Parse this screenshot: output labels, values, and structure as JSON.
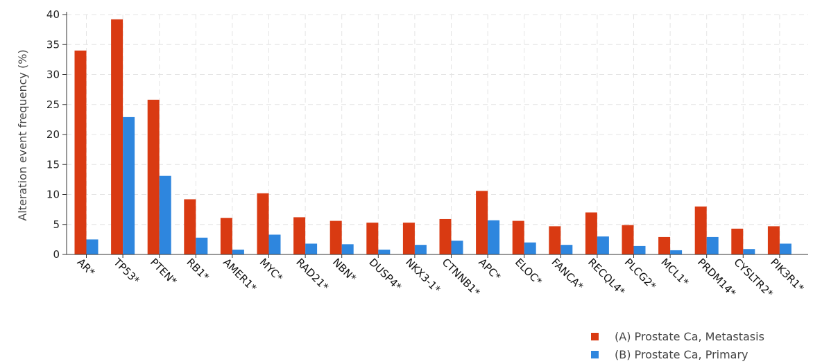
{
  "chart_data": {
    "type": "bar",
    "ylabel": "Alteration event frequency (%)",
    "ylim": [
      0,
      40
    ],
    "yticks": [
      0,
      5,
      10,
      15,
      20,
      25,
      30,
      35,
      40
    ],
    "grid": true,
    "legend_position": "bottom-right",
    "categories": [
      "AR*",
      "TP53*",
      "PTEN*",
      "RB1*",
      "AMER1*",
      "MYC*",
      "RAD21*",
      "NBN*",
      "DUSP4*",
      "NKX3-1*",
      "CTNNB1*",
      "APC*",
      "ELOC*",
      "FANCA*",
      "RECQL4*",
      "PLCG2*",
      "MCL1*",
      "PRDM14*",
      "CYSLTR2*",
      "PIK3R1*"
    ],
    "series": [
      {
        "name": "(A) Prostate Ca, Metastasis",
        "color": "#d93a12",
        "values": [
          34.0,
          39.2,
          25.8,
          9.2,
          6.1,
          10.2,
          6.2,
          5.6,
          5.3,
          5.3,
          5.9,
          10.6,
          5.6,
          4.7,
          7.0,
          4.9,
          2.9,
          8.0,
          4.3,
          4.7
        ]
      },
      {
        "name": "(B) Prostate Ca, Primary",
        "color": "#2e86de",
        "values": [
          2.5,
          22.9,
          13.1,
          2.8,
          0.8,
          3.3,
          1.8,
          1.7,
          0.8,
          1.6,
          2.3,
          5.7,
          2.0,
          1.6,
          3.0,
          1.4,
          0.7,
          2.9,
          0.9,
          1.8
        ]
      }
    ]
  }
}
